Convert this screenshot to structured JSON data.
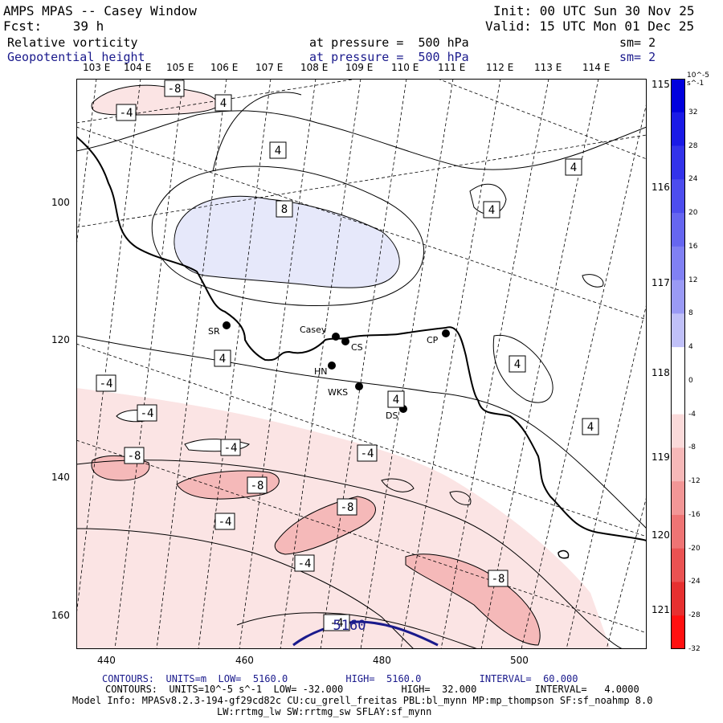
{
  "header": {
    "title": "AMPS MPAS -- Casey Window",
    "forecast": "Fcst:    39 h",
    "init": "Init: 00 UTC Sun 30 Nov 25",
    "valid": "Valid: 15 UTC Mon 01 Dec 25",
    "field1_name": "Relative vorticity",
    "field1_level": "at pressure =  500 hPa",
    "field1_sm": "sm= 2",
    "field2_name": "Geopotential height",
    "field2_level": "at pressure =  500 hPa",
    "field2_sm": "sm= 2"
  },
  "lon_labels": [
    "103 E",
    "104 E",
    "105 E",
    "106 E",
    "107 E",
    "108 E",
    "109 E",
    "110 E",
    "111 E",
    "112 E",
    "113 E",
    "114 E"
  ],
  "lat_labels": [
    "115 E",
    "116 E",
    "117 E",
    "118 E",
    "119 E",
    "120 E",
    "121 E"
  ],
  "y_ticks": [
    "100",
    "120",
    "140",
    "160"
  ],
  "x_ticks": [
    "440",
    "460",
    "480",
    "500"
  ],
  "stations": [
    {
      "name": "SR"
    },
    {
      "name": "Casey"
    },
    {
      "name": "CS"
    },
    {
      "name": "HN"
    },
    {
      "name": "WKS"
    },
    {
      "name": "DS"
    },
    {
      "name": "CP"
    }
  ],
  "contour_labels": [
    "-8",
    "-4",
    "4",
    "8",
    "-4",
    "4",
    "4",
    "4",
    "4",
    "-4",
    "-4",
    "-8",
    "-4",
    "-4",
    "-8",
    "-4",
    "-8",
    "-4",
    "-8",
    "-4",
    "4",
    "4",
    "4",
    "5160"
  ],
  "colorbar": {
    "units": "10^-5 s^-1",
    "ticks": [
      "32",
      "28",
      "24",
      "20",
      "16",
      "12",
      "8",
      "4",
      "0",
      "-4",
      "-8",
      "-12",
      "-16",
      "-20",
      "-24",
      "-28",
      "-32"
    ],
    "colors": [
      "#0000dd",
      "#1a1ae6",
      "#3333ea",
      "#4d4dee",
      "#6666f0",
      "#8080f3",
      "#9a9af5",
      "#c0c0f8",
      "#ffffff",
      "#ffffff",
      "#fadada",
      "#f6b8b8",
      "#f29696",
      "#ee7474",
      "#ea5252",
      "#e63030",
      "#ff1010"
    ]
  },
  "footer": {
    "line1": "CONTOURS:  UNITS=m  LOW=  5160.0          HIGH=  5160.0          INTERVAL=  60.000",
    "line2": "CONTOURS:  UNITS=10^-5 s^-1  LOW= -32.000          HIGH=  32.000          INTERVAL=   4.0000",
    "line3": "Model Info: MPASv8.2.3-194-gf29cd82c CU:cu_grell_freitas PBL:bl_mynn MP:mp_thompson SF:sf_noahmp 8.0",
    "line4": "LW:rrtmg_lw SW:rrtmg_sw SFLAY:sf_mynn"
  }
}
